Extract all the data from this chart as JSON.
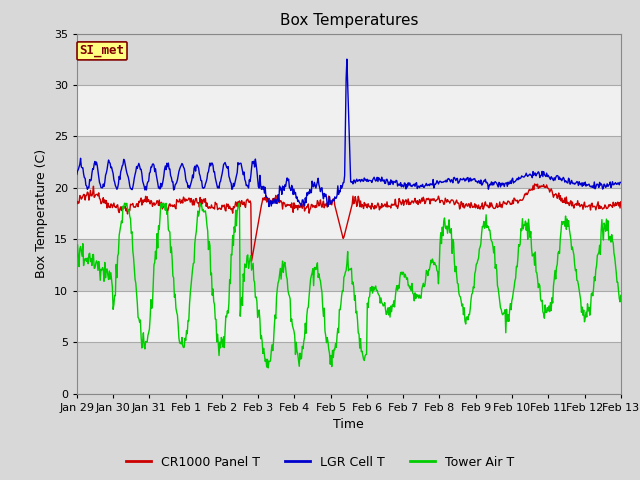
{
  "title": "Box Temperatures",
  "ylabel": "Box Temperature (C)",
  "xlabel": "Time",
  "ylim": [
    0,
    35
  ],
  "yticks": [
    0,
    5,
    10,
    15,
    20,
    25,
    30,
    35
  ],
  "xtick_labels": [
    "Jan 29",
    "Jan 30",
    "Jan 31",
    "Feb 1",
    "Feb 2",
    "Feb 3",
    "Feb 4",
    "Feb 5",
    "Feb 6",
    "Feb 7",
    "Feb 8",
    "Feb 9",
    "Feb 10",
    "Feb 11",
    "Feb 12",
    "Feb 13"
  ],
  "background_color": "#d8d8d8",
  "plot_bg_color": "#d8d8d8",
  "white_band_color": "#f0f0f0",
  "gray_band_color": "#d8d8d8",
  "annotation_text": "SI_met",
  "annotation_bg": "#ffff80",
  "annotation_border": "#800000",
  "legend_entries": [
    "CR1000 Panel T",
    "LGR Cell T",
    "Tower Air T"
  ],
  "line_colors": [
    "#cc0000",
    "#0000cc",
    "#00cc00"
  ],
  "title_fontsize": 11,
  "label_fontsize": 9,
  "tick_fontsize": 8
}
